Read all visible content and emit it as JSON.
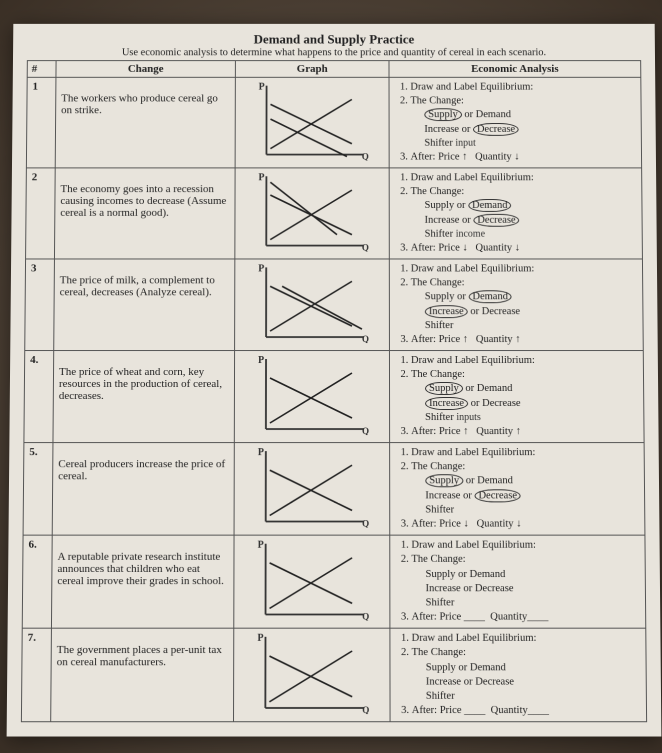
{
  "title": "Demand and Supply Practice",
  "subtitle": "Use economic analysis to determine what happens to the price and quantity of cereal in each scenario.",
  "headers": {
    "num": "#",
    "change": "Change",
    "graph": "Graph",
    "analysis": "Economic Analysis"
  },
  "analysis_template": {
    "l1": "Draw and Label Equilibrium:",
    "l2": "The Change:",
    "sd": "Supply or Demand",
    "id": "Increase or Decrease",
    "shifter": "Shifter",
    "l3": "After: Price",
    "qty": "Quantity"
  },
  "rows": [
    {
      "n": "1",
      "change": "The workers who produce cereal go on strike.",
      "circle_sd": "Supply",
      "plain_sd": " or Demand",
      "plain_id": "Increase or ",
      "circle_id": "Decrease",
      "shifter_hand": "input",
      "price_arrow": "↑",
      "qty_arrow": "↓",
      "strokes": [
        [
          18,
          70,
          100,
          20
        ],
        [
          18,
          25,
          100,
          65
        ],
        [
          18,
          40,
          95,
          78
        ]
      ]
    },
    {
      "n": "2",
      "change": "The economy goes into a recession causing incomes to decrease (Assume cereal is a normal good).",
      "plain_sd_pre": "Supply or ",
      "circle_sd": "Demand",
      "plain_id": "Increase or ",
      "circle_id": "Decrease",
      "shifter_hand": "income",
      "price_arrow": "↓",
      "qty_arrow": "↓",
      "strokes": [
        [
          18,
          70,
          100,
          20
        ],
        [
          18,
          25,
          100,
          65
        ],
        [
          18,
          12,
          85,
          65
        ]
      ]
    },
    {
      "n": "3",
      "change": "The price of milk, a complement to cereal, decreases (Analyze cereal).",
      "plain_sd_pre": "Supply or ",
      "circle_sd": "Demand",
      "circle_id": "Increase",
      "plain_id_post": " or Decrease",
      "shifter_hand": "",
      "price_arrow": "↑",
      "qty_arrow": "↑",
      "strokes": [
        [
          18,
          70,
          100,
          20
        ],
        [
          18,
          25,
          100,
          65
        ],
        [
          30,
          25,
          110,
          68
        ]
      ]
    },
    {
      "n": "4.",
      "change": "The price of wheat and corn, key resources in the production of cereal, decreases.",
      "circle_sd": "Supply",
      "plain_sd": " or Demand",
      "circle_id": "Increase",
      "plain_id_post": " or Decrease",
      "shifter_hand": "inputs",
      "price_arrow": "↑",
      "qty_arrow": "↑",
      "strokes": [
        [
          18,
          70,
          100,
          20
        ],
        [
          18,
          25,
          100,
          65
        ]
      ]
    },
    {
      "n": "5.",
      "change": "Cereal producers increase the price of cereal.",
      "circle_sd": "Supply",
      "plain_sd": " or Demand",
      "plain_id": "Increase or ",
      "circle_id": "Decrease",
      "shifter_hand": "",
      "price_arrow": "↓",
      "qty_arrow": "↓",
      "strokes": [
        [
          18,
          70,
          100,
          20
        ],
        [
          18,
          25,
          100,
          65
        ]
      ]
    },
    {
      "n": "6.",
      "change": "A reputable private research institute announces that children who eat cereal improve their grades in school.",
      "plain_sd": "Supply or Demand",
      "plain_id": "Increase or Decrease",
      "shifter_hand": "",
      "price_blank": "____",
      "qty_blank": "____",
      "strokes": [
        [
          18,
          70,
          100,
          20
        ],
        [
          18,
          25,
          100,
          65
        ]
      ]
    },
    {
      "n": "7.",
      "change": "The government places a per-unit tax on cereal manufacturers.",
      "plain_sd": "Supply or Demand",
      "plain_id": "Increase or Decrease",
      "shifter_hand": "",
      "price_blank": "____",
      "qty_blank": "____",
      "strokes": [
        [
          18,
          70,
          100,
          20
        ],
        [
          18,
          25,
          100,
          65
        ]
      ]
    }
  ],
  "graph_style": {
    "axis_color": "#333",
    "stroke_color": "#222",
    "stroke_width": 1.6,
    "axis_width": 1.8,
    "p_label": "P",
    "q_label": "Q",
    "w": 120,
    "h": 82
  }
}
